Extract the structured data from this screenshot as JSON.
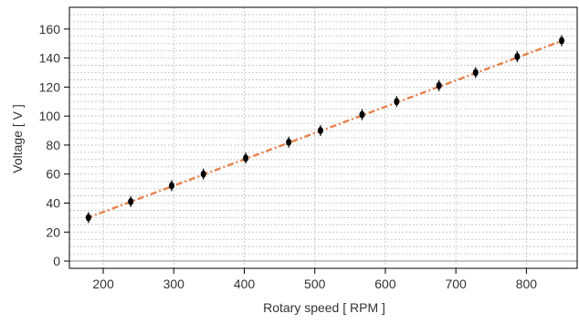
{
  "chart_data": {
    "type": "scatter",
    "title": "",
    "xlabel": "Rotary speed [ RPM ]",
    "ylabel": "Voltage [ V ]",
    "xlim": [
      152,
      872
    ],
    "ylim": [
      -5,
      175
    ],
    "xticks": [
      200,
      300,
      400,
      500,
      600,
      700,
      800
    ],
    "yticks": [
      0,
      20,
      40,
      60,
      80,
      100,
      120,
      140,
      160
    ],
    "minor_grid_step_y": 5,
    "grid": true,
    "legend": "none",
    "colors": {
      "points": "#000000",
      "fit_line": "#e8804a",
      "frame": "#000000",
      "grid": "#bdbdbd"
    },
    "series": [
      {
        "values": [
          {
            "x": 179,
            "y": 30
          },
          {
            "x": 239,
            "y": 41
          },
          {
            "x": 297,
            "y": 52
          },
          {
            "x": 342,
            "y": 60
          },
          {
            "x": 402,
            "y": 71
          },
          {
            "x": 463,
            "y": 82
          },
          {
            "x": 508,
            "y": 90
          },
          {
            "x": 567,
            "y": 101
          },
          {
            "x": 616,
            "y": 110
          },
          {
            "x": 676,
            "y": 121
          },
          {
            "x": 728,
            "y": 130
          },
          {
            "x": 787,
            "y": 141
          },
          {
            "x": 850,
            "y": 152
          }
        ]
      }
    ],
    "fit_line": {
      "x": [
        176,
        854
      ],
      "y": [
        29.5,
        152.5
      ]
    }
  }
}
